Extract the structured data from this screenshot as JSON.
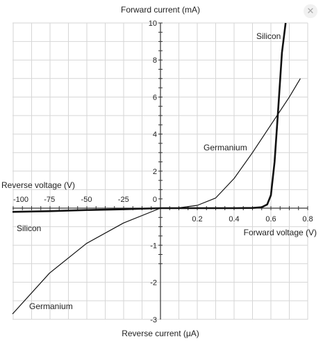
{
  "chart_data": {
    "type": "line",
    "axis_labels": {
      "forward_current": "Forward current (mA)",
      "reverse_current": "Reverse current (μA)",
      "forward_voltage": "Forward voltage (V)",
      "reverse_voltage": "Reverse voltage (V)"
    },
    "upper_y": {
      "range": [
        0,
        10
      ],
      "tick_values": [
        2,
        4,
        6,
        8,
        10
      ],
      "tick_labels": [
        "2",
        "4",
        "6",
        "8",
        "10"
      ],
      "unit": "mA"
    },
    "lower_y": {
      "range": [
        -3,
        0
      ],
      "tick_values": [
        -1,
        -2,
        -3
      ],
      "tick_labels": [
        "-1",
        "-2",
        "-3"
      ],
      "unit": "μA"
    },
    "right_x": {
      "range": [
        0,
        0.8
      ],
      "tick_values": [
        0.2,
        0.4,
        0.6,
        0.8
      ],
      "tick_labels": [
        "0.2",
        "0.4",
        "0.6",
        "0.8"
      ],
      "unit": "V"
    },
    "left_x": {
      "range": [
        -100,
        0
      ],
      "tick_values": [
        -100,
        -75,
        -50,
        -25
      ],
      "tick_labels": [
        "-100",
        "-75",
        "-50",
        "-25"
      ],
      "unit": "V"
    },
    "origin_label": "0",
    "grid": true,
    "series": [
      {
        "name": "Silicon",
        "style": "thick",
        "forward": [
          [
            0,
            0
          ],
          [
            0.2,
            0
          ],
          [
            0.4,
            0
          ],
          [
            0.5,
            0.01
          ],
          [
            0.55,
            0.05
          ],
          [
            0.58,
            0.2
          ],
          [
            0.6,
            0.7
          ],
          [
            0.62,
            2.5
          ],
          [
            0.64,
            5.4
          ],
          [
            0.66,
            8.4
          ],
          [
            0.68,
            10.0
          ]
        ],
        "reverse": [
          [
            0,
            0
          ],
          [
            -25,
            -0.03
          ],
          [
            -50,
            -0.05
          ],
          [
            -75,
            -0.08
          ],
          [
            -100,
            -0.1
          ]
        ]
      },
      {
        "name": "Germanium",
        "style": "thin",
        "forward": [
          [
            0,
            0
          ],
          [
            0.1,
            0.02
          ],
          [
            0.2,
            0.15
          ],
          [
            0.3,
            0.55
          ],
          [
            0.4,
            1.6
          ],
          [
            0.5,
            3.0
          ],
          [
            0.6,
            4.5
          ],
          [
            0.7,
            6.0
          ],
          [
            0.76,
            7.0
          ]
        ],
        "reverse": [
          [
            0,
            0
          ],
          [
            -25,
            -0.4
          ],
          [
            -50,
            -0.95
          ],
          [
            -75,
            -1.75
          ],
          [
            -100,
            -2.85
          ]
        ]
      }
    ]
  },
  "ui": {
    "close_icon_glyph": "✕"
  }
}
